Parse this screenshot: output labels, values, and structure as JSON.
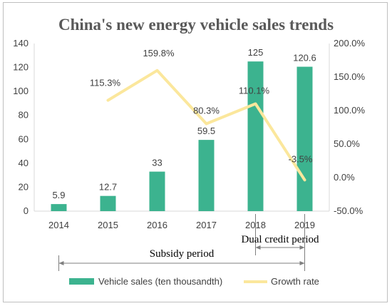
{
  "chart_data": {
    "type": "bar",
    "title": "China's new energy vehicle sales trends",
    "categories": [
      "2014",
      "2015",
      "2016",
      "2017",
      "2018",
      "2019"
    ],
    "series": [
      {
        "name": "Vehicle sales (ten thousandth)",
        "type": "bar",
        "axis": "left",
        "values": [
          5.9,
          12.7,
          33,
          59.5,
          125,
          120.6
        ],
        "labels": [
          "5.9",
          "12.7",
          "33",
          "59.5",
          "125",
          "120.6"
        ],
        "color": "#3cb38f"
      },
      {
        "name": "Growth rate",
        "type": "line",
        "axis": "right",
        "x": [
          "2015",
          "2016",
          "2017",
          "2018",
          "2019"
        ],
        "values": [
          115.3,
          159.8,
          80.3,
          110.1,
          -3.5
        ],
        "labels": [
          "115.3%",
          "159.8%",
          "80.3%",
          "110.1%",
          "-3.5%"
        ],
        "color": "#fbe79c"
      }
    ],
    "ylim": [
      0,
      140
    ],
    "y_ticks": [
      "0",
      "20",
      "40",
      "60",
      "80",
      "100",
      "120",
      "140"
    ],
    "y2lim": [
      -50,
      200
    ],
    "y2_ticks": [
      "-50.0%",
      "0.0%",
      "50.0%",
      "100.0%",
      "150.0%",
      "200.0%"
    ],
    "grid": false,
    "legend": "bottom",
    "annotations": [
      {
        "text": "Dual credit period",
        "from": "2018",
        "to": "2019"
      },
      {
        "text": "Subsidy period",
        "from": "2014",
        "to": "2019"
      }
    ]
  }
}
